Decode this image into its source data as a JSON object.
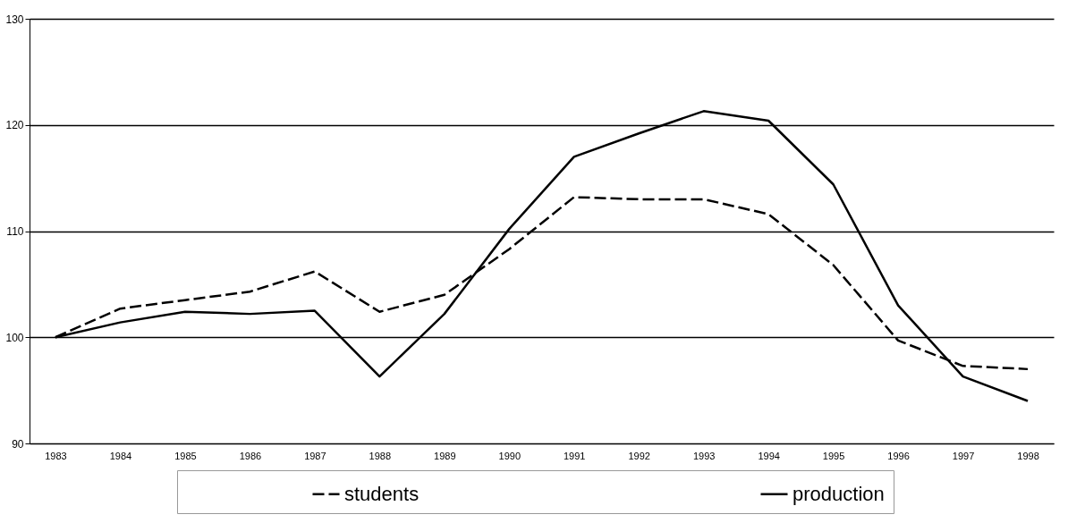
{
  "chart_data": {
    "type": "line",
    "categories": [
      "1983",
      "1984",
      "1985",
      "1986",
      "1987",
      "1988",
      "1989",
      "1990",
      "1991",
      "1992",
      "1993",
      "1994",
      "1995",
      "1996",
      "1997",
      "1998"
    ],
    "series": [
      {
        "name": "students",
        "color": "#000000",
        "line_style": "dashed",
        "values": [
          100,
          102.7,
          103.5,
          104.3,
          106.2,
          102.4,
          104,
          108.3,
          113.2,
          113,
          113,
          111.6,
          106.8,
          99.7,
          97.3,
          97
        ]
      },
      {
        "name": "production",
        "color": "#000000",
        "line_style": "solid",
        "values": [
          100,
          101.4,
          102.4,
          102.2,
          102.5,
          96.3,
          102.2,
          110.2,
          117,
          119.2,
          121.3,
          120.4,
          114.4,
          103,
          96.3,
          94
        ]
      }
    ],
    "ylim": [
      90,
      130
    ],
    "yticks": [
      90,
      100,
      110,
      120,
      130
    ],
    "grid": "y",
    "legend": "bottom",
    "marker": "none"
  }
}
